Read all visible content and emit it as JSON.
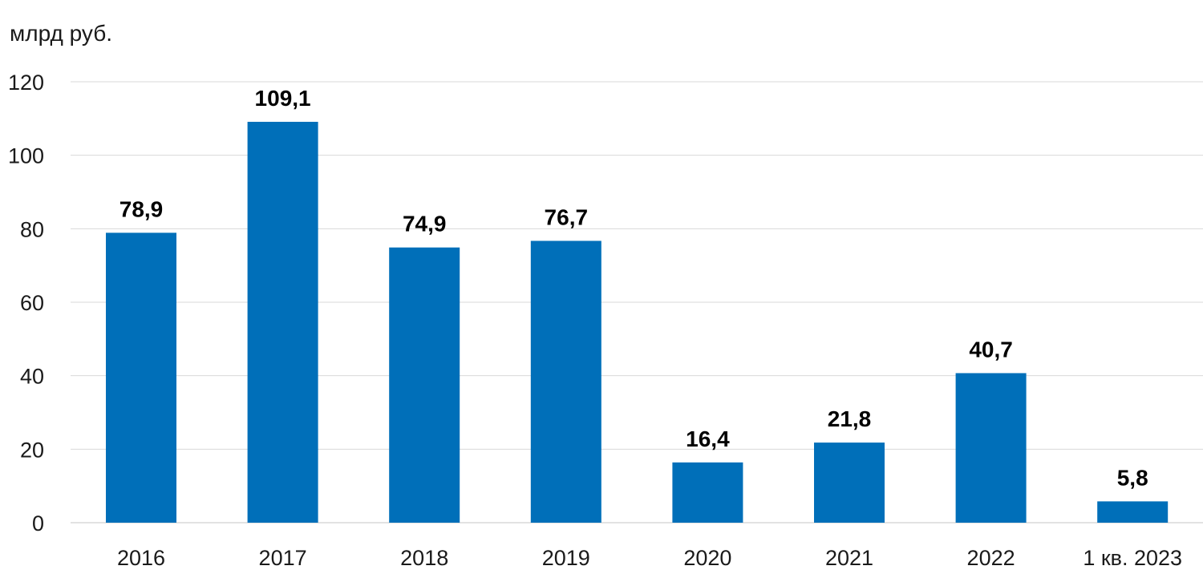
{
  "chart_data": {
    "type": "bar",
    "unit_label": "млрд руб.",
    "categories": [
      "2016",
      "2017",
      "2018",
      "2019",
      "2020",
      "2021",
      "2022",
      "1 кв. 2023"
    ],
    "values": [
      78.9,
      109.1,
      74.9,
      76.7,
      16.4,
      21.8,
      40.7,
      5.8
    ],
    "value_labels": [
      "78,9",
      "109,1",
      "74,9",
      "76,7",
      "16,4",
      "21,8",
      "40,7",
      "5,8"
    ],
    "y_ticks": [
      "0",
      "20",
      "40",
      "60",
      "80",
      "100",
      "120"
    ],
    "ylim": [
      0,
      120
    ],
    "grid": true,
    "legend": "none",
    "bar_color": "#006fb9",
    "grid_color": "#d9d9d9"
  }
}
